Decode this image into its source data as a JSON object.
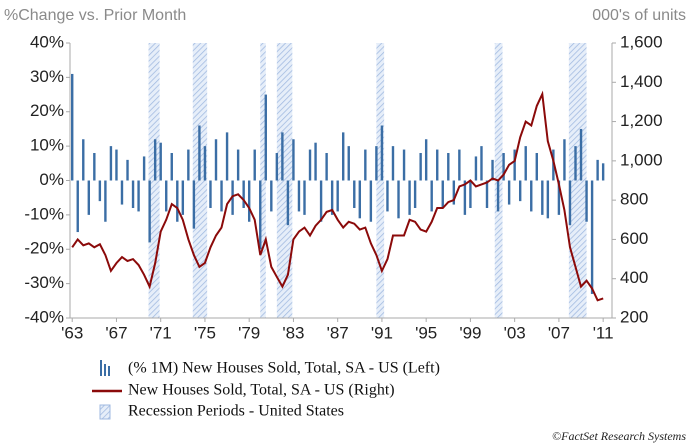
{
  "chart_data": {
    "type": "bar-line",
    "left_axis_label": "%Change vs. Prior Month",
    "right_axis_label": "000's of units",
    "credit": "©FactSet Research Systems",
    "x": [
      1963,
      1963.5,
      1964,
      1964.5,
      1965,
      1965.5,
      1966,
      1966.5,
      1967,
      1967.5,
      1968,
      1968.5,
      1969,
      1969.5,
      1970,
      1970.5,
      1971,
      1971.5,
      1972,
      1972.5,
      1973,
      1973.5,
      1974,
      1974.5,
      1975,
      1975.5,
      1976,
      1976.5,
      1977,
      1977.5,
      1978,
      1978.5,
      1979,
      1979.5,
      1980,
      1980.5,
      1981,
      1981.5,
      1982,
      1982.5,
      1983,
      1983.5,
      1984,
      1984.5,
      1985,
      1985.5,
      1986,
      1986.5,
      1987,
      1987.5,
      1988,
      1988.5,
      1989,
      1989.5,
      1990,
      1990.5,
      1991,
      1991.5,
      1992,
      1992.5,
      1993,
      1993.5,
      1994,
      1994.5,
      1995,
      1995.5,
      1996,
      1996.5,
      1997,
      1997.5,
      1998,
      1998.5,
      1999,
      1999.5,
      2000,
      2000.5,
      2001,
      2001.5,
      2002,
      2002.5,
      2003,
      2003.5,
      2004,
      2004.5,
      2005,
      2005.5,
      2006,
      2006.5,
      2007,
      2007.5,
      2008,
      2008.5,
      2009,
      2009.5,
      2010,
      2010.5,
      2011
    ],
    "series": [
      {
        "name": "(% 1M) New Houses Sold, Total, SA - US  (Left)",
        "color": "#3b6ea5",
        "kind": "bar",
        "values": [
          31,
          -15,
          12,
          -10,
          8,
          -6,
          -12,
          10,
          9,
          -7,
          6,
          -8,
          -9,
          7,
          -18,
          12,
          11,
          -9,
          8,
          -12,
          -10,
          9,
          -14,
          16,
          10,
          -8,
          12,
          -9,
          14,
          -10,
          9,
          -8,
          -12,
          9,
          -20,
          25,
          -9,
          8,
          14,
          -13,
          12,
          -9,
          -10,
          9,
          11,
          -12,
          8,
          -10,
          -9,
          14,
          10,
          -8,
          -11,
          9,
          -12,
          10,
          16,
          -9,
          10,
          -11,
          9,
          -10,
          -8,
          8,
          12,
          -9,
          9,
          -8,
          8,
          -7,
          9,
          -10,
          -8,
          7,
          10,
          -8,
          6,
          -9,
          8,
          -7,
          9,
          -6,
          10,
          -9,
          8,
          -10,
          -11,
          9,
          -10,
          12,
          -13,
          10,
          15,
          -12,
          -33,
          6,
          5
        ]
      },
      {
        "name": "New Houses Sold, Total, SA - US  (Right)",
        "color": "#8b0a0a",
        "kind": "line",
        "axis": "y2",
        "values": [
          560,
          600,
          570,
          580,
          560,
          575,
          520,
          440,
          480,
          510,
          490,
          500,
          470,
          420,
          360,
          480,
          640,
          700,
          780,
          760,
          700,
          600,
          520,
          460,
          480,
          560,
          620,
          660,
          780,
          820,
          830,
          800,
          760,
          700,
          520,
          600,
          460,
          410,
          360,
          420,
          600,
          640,
          660,
          620,
          670,
          700,
          740,
          750,
          700,
          660,
          690,
          680,
          650,
          660,
          580,
          520,
          440,
          500,
          620,
          620,
          620,
          700,
          690,
          650,
          640,
          690,
          760,
          760,
          790,
          800,
          870,
          880,
          900,
          870,
          880,
          890,
          910,
          900,
          930,
          980,
          1000,
          1120,
          1200,
          1180,
          1280,
          1340,
          1100,
          1000,
          880,
          750,
          560,
          460,
          360,
          390,
          350,
          290,
          300
        ]
      }
    ],
    "recessions": {
      "name": "Recession Periods - United States",
      "periods": [
        [
          1969.9,
          1970.9
        ],
        [
          1973.9,
          1975.2
        ],
        [
          1980.0,
          1980.5
        ],
        [
          1981.5,
          1982.9
        ],
        [
          1990.5,
          1991.2
        ],
        [
          2001.2,
          2001.9
        ],
        [
          2007.9,
          2009.5
        ]
      ]
    },
    "xlim": [
      1962.8,
      2011.8
    ],
    "xticks": [
      {
        "value": 1963,
        "label": "'63"
      },
      {
        "value": 1967,
        "label": "'67"
      },
      {
        "value": 1971,
        "label": "'71"
      },
      {
        "value": 1975,
        "label": "'75"
      },
      {
        "value": 1979,
        "label": "'79"
      },
      {
        "value": 1983,
        "label": "'83"
      },
      {
        "value": 1987,
        "label": "'87"
      },
      {
        "value": 1991,
        "label": "'91"
      },
      {
        "value": 1995,
        "label": "'95"
      },
      {
        "value": 1999,
        "label": "'99"
      },
      {
        "value": 2003,
        "label": "'03"
      },
      {
        "value": 2007,
        "label": "'07"
      },
      {
        "value": 2011,
        "label": "'11"
      }
    ],
    "ylim": [
      -40,
      40
    ],
    "yticks": [
      {
        "value": 40,
        "label": "40%"
      },
      {
        "value": 30,
        "label": "30%"
      },
      {
        "value": 20,
        "label": "20%"
      },
      {
        "value": 10,
        "label": "10%"
      },
      {
        "value": 0,
        "label": "0%"
      },
      {
        "value": -10,
        "label": "-10%"
      },
      {
        "value": -20,
        "label": "-20%"
      },
      {
        "value": -30,
        "label": "-30%"
      },
      {
        "value": -40,
        "label": "-40%"
      }
    ],
    "y2lim": [
      200,
      1600
    ],
    "y2ticks": [
      {
        "value": 1600,
        "label": "1,600"
      },
      {
        "value": 1400,
        "label": "1,400"
      },
      {
        "value": 1200,
        "label": "1,200"
      },
      {
        "value": 1000,
        "label": "1,000"
      },
      800,
      600,
      400,
      200
    ]
  }
}
